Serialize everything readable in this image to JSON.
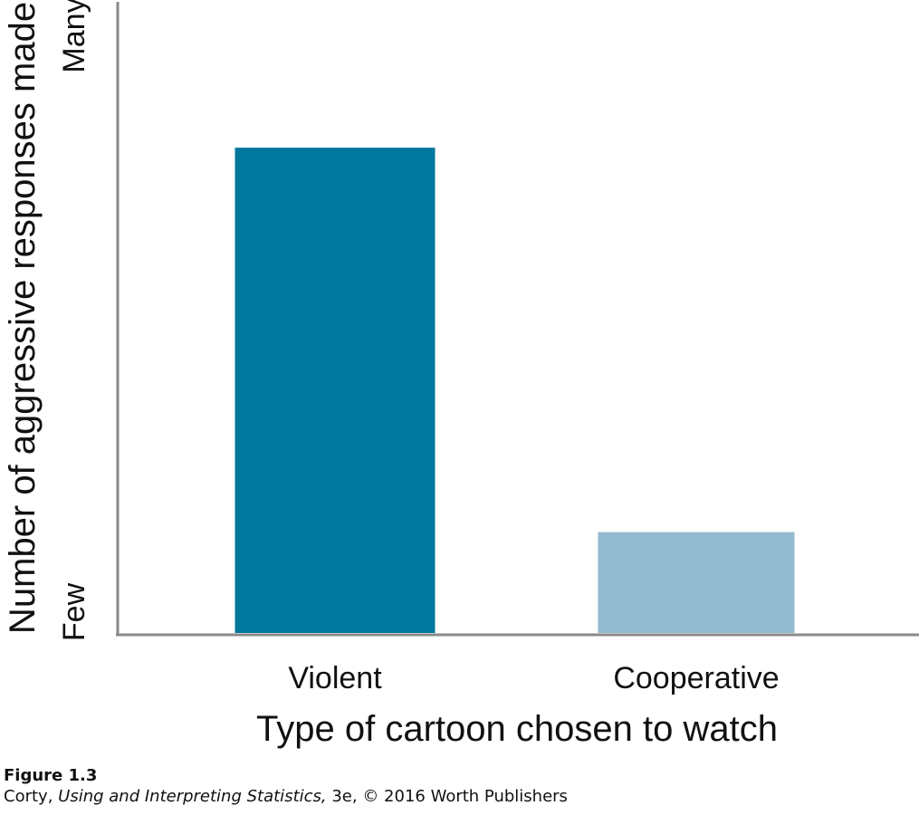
{
  "chart_data": {
    "type": "bar",
    "categories": [
      "Violent",
      "Cooperative"
    ],
    "values": [
      0.77,
      0.16
    ],
    "colors": [
      "#00789d",
      "#93b9cf"
    ],
    "xlabel": "Type of cartoon chosen to watch",
    "ylabel": "Number of aggressive responses made",
    "ylim": [
      0,
      1
    ],
    "y_end_labels": {
      "low": "Few",
      "high": "Many"
    },
    "grid": false,
    "legend": "none"
  },
  "caption": {
    "figure": "Figure 1.3",
    "author": "Corty,",
    "book_title": "Using and Interpreting Statistics,",
    "edition_rest": "3e, © 2016 Worth Publishers"
  }
}
